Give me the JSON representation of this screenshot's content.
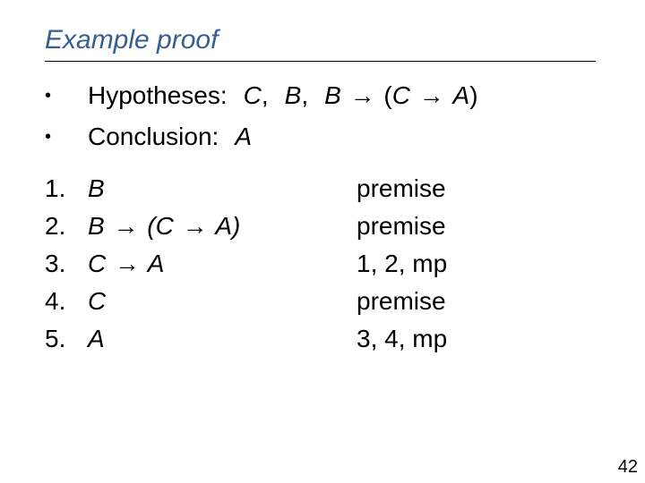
{
  "title": "Example proof",
  "colors": {
    "title": "#355e93",
    "text": "#000000",
    "background": "#ffffff",
    "rule": "#000000"
  },
  "typography": {
    "title_fontsize_pt": 22,
    "body_fontsize_pt": 21,
    "italic_vars": true,
    "font_family": "Arial"
  },
  "bullets": [
    {
      "label": "Hypotheses:",
      "items": [
        "C",
        "B",
        "B → (C → A)"
      ]
    },
    {
      "label": "Conclusion:",
      "items": [
        "A"
      ]
    }
  ],
  "proof": [
    {
      "n": "1.",
      "formula": "B",
      "just": "premise"
    },
    {
      "n": "2.",
      "formula": "B → (C → A)",
      "just": "premise"
    },
    {
      "n": "3.",
      "formula": "C → A",
      "just": "1, 2, mp"
    },
    {
      "n": "4.",
      "formula": "C",
      "just": "premise"
    },
    {
      "n": "5.",
      "formula": "A",
      "just": "3, 4, mp"
    }
  ],
  "arrow_glyph": "→",
  "page_number": "42"
}
